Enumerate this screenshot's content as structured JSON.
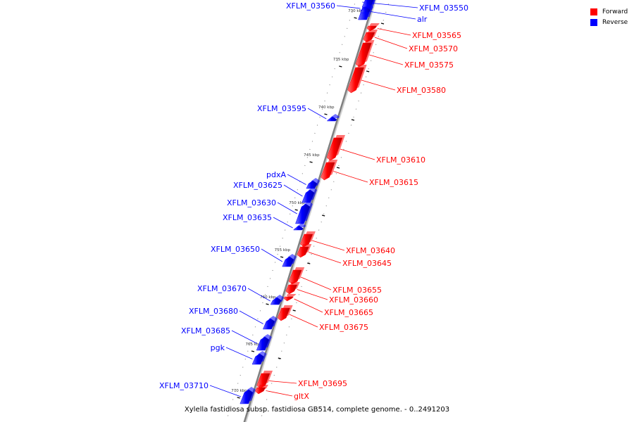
{
  "caption": "Xylella fastidiosa subsp. fastidiosa GB514, complete genome. - 0..2491203",
  "legend": [
    {
      "label": "Forward",
      "color": "#ff0000"
    },
    {
      "label": "Reverse",
      "color": "#0000ff"
    }
  ],
  "colors": {
    "forward": "#ff0000",
    "reverse": "#0000ff",
    "backbone": "#808080"
  },
  "ticks": [
    "730 kbp",
    "735 kbp",
    "740 kbp",
    "745 kbp",
    "750 kbp",
    "755 kbp",
    "760 kbp",
    "765 kbp",
    "770 kbp"
  ],
  "genes": [
    {
      "name": "XFLM_03560",
      "strand": "reverse"
    },
    {
      "name": "XFLM_03550",
      "strand": "reverse"
    },
    {
      "name": "alr",
      "strand": "reverse"
    },
    {
      "name": "XFLM_03565",
      "strand": "forward"
    },
    {
      "name": "XFLM_03570",
      "strand": "forward"
    },
    {
      "name": "XFLM_03575",
      "strand": "forward"
    },
    {
      "name": "XFLM_03580",
      "strand": "forward"
    },
    {
      "name": "XFLM_03595",
      "strand": "reverse"
    },
    {
      "name": "XFLM_03610",
      "strand": "forward"
    },
    {
      "name": "XFLM_03615",
      "strand": "forward"
    },
    {
      "name": "pdxA",
      "strand": "reverse"
    },
    {
      "name": "XFLM_03625",
      "strand": "reverse"
    },
    {
      "name": "XFLM_03630",
      "strand": "reverse"
    },
    {
      "name": "XFLM_03635",
      "strand": "reverse"
    },
    {
      "name": "XFLM_03640",
      "strand": "forward"
    },
    {
      "name": "XFLM_03645",
      "strand": "forward"
    },
    {
      "name": "XFLM_03650",
      "strand": "reverse"
    },
    {
      "name": "XFLM_03655",
      "strand": "forward"
    },
    {
      "name": "XFLM_03660",
      "strand": "forward"
    },
    {
      "name": "XFLM_03665",
      "strand": "forward"
    },
    {
      "name": "XFLM_03670",
      "strand": "reverse"
    },
    {
      "name": "XFLM_03675",
      "strand": "forward"
    },
    {
      "name": "XFLM_03680",
      "strand": "reverse"
    },
    {
      "name": "XFLM_03685",
      "strand": "reverse"
    },
    {
      "name": "pgk",
      "strand": "reverse"
    },
    {
      "name": "XFLM_03695",
      "strand": "forward"
    },
    {
      "name": "gltX",
      "strand": "forward"
    },
    {
      "name": "XFLM_03710",
      "strand": "reverse"
    }
  ]
}
